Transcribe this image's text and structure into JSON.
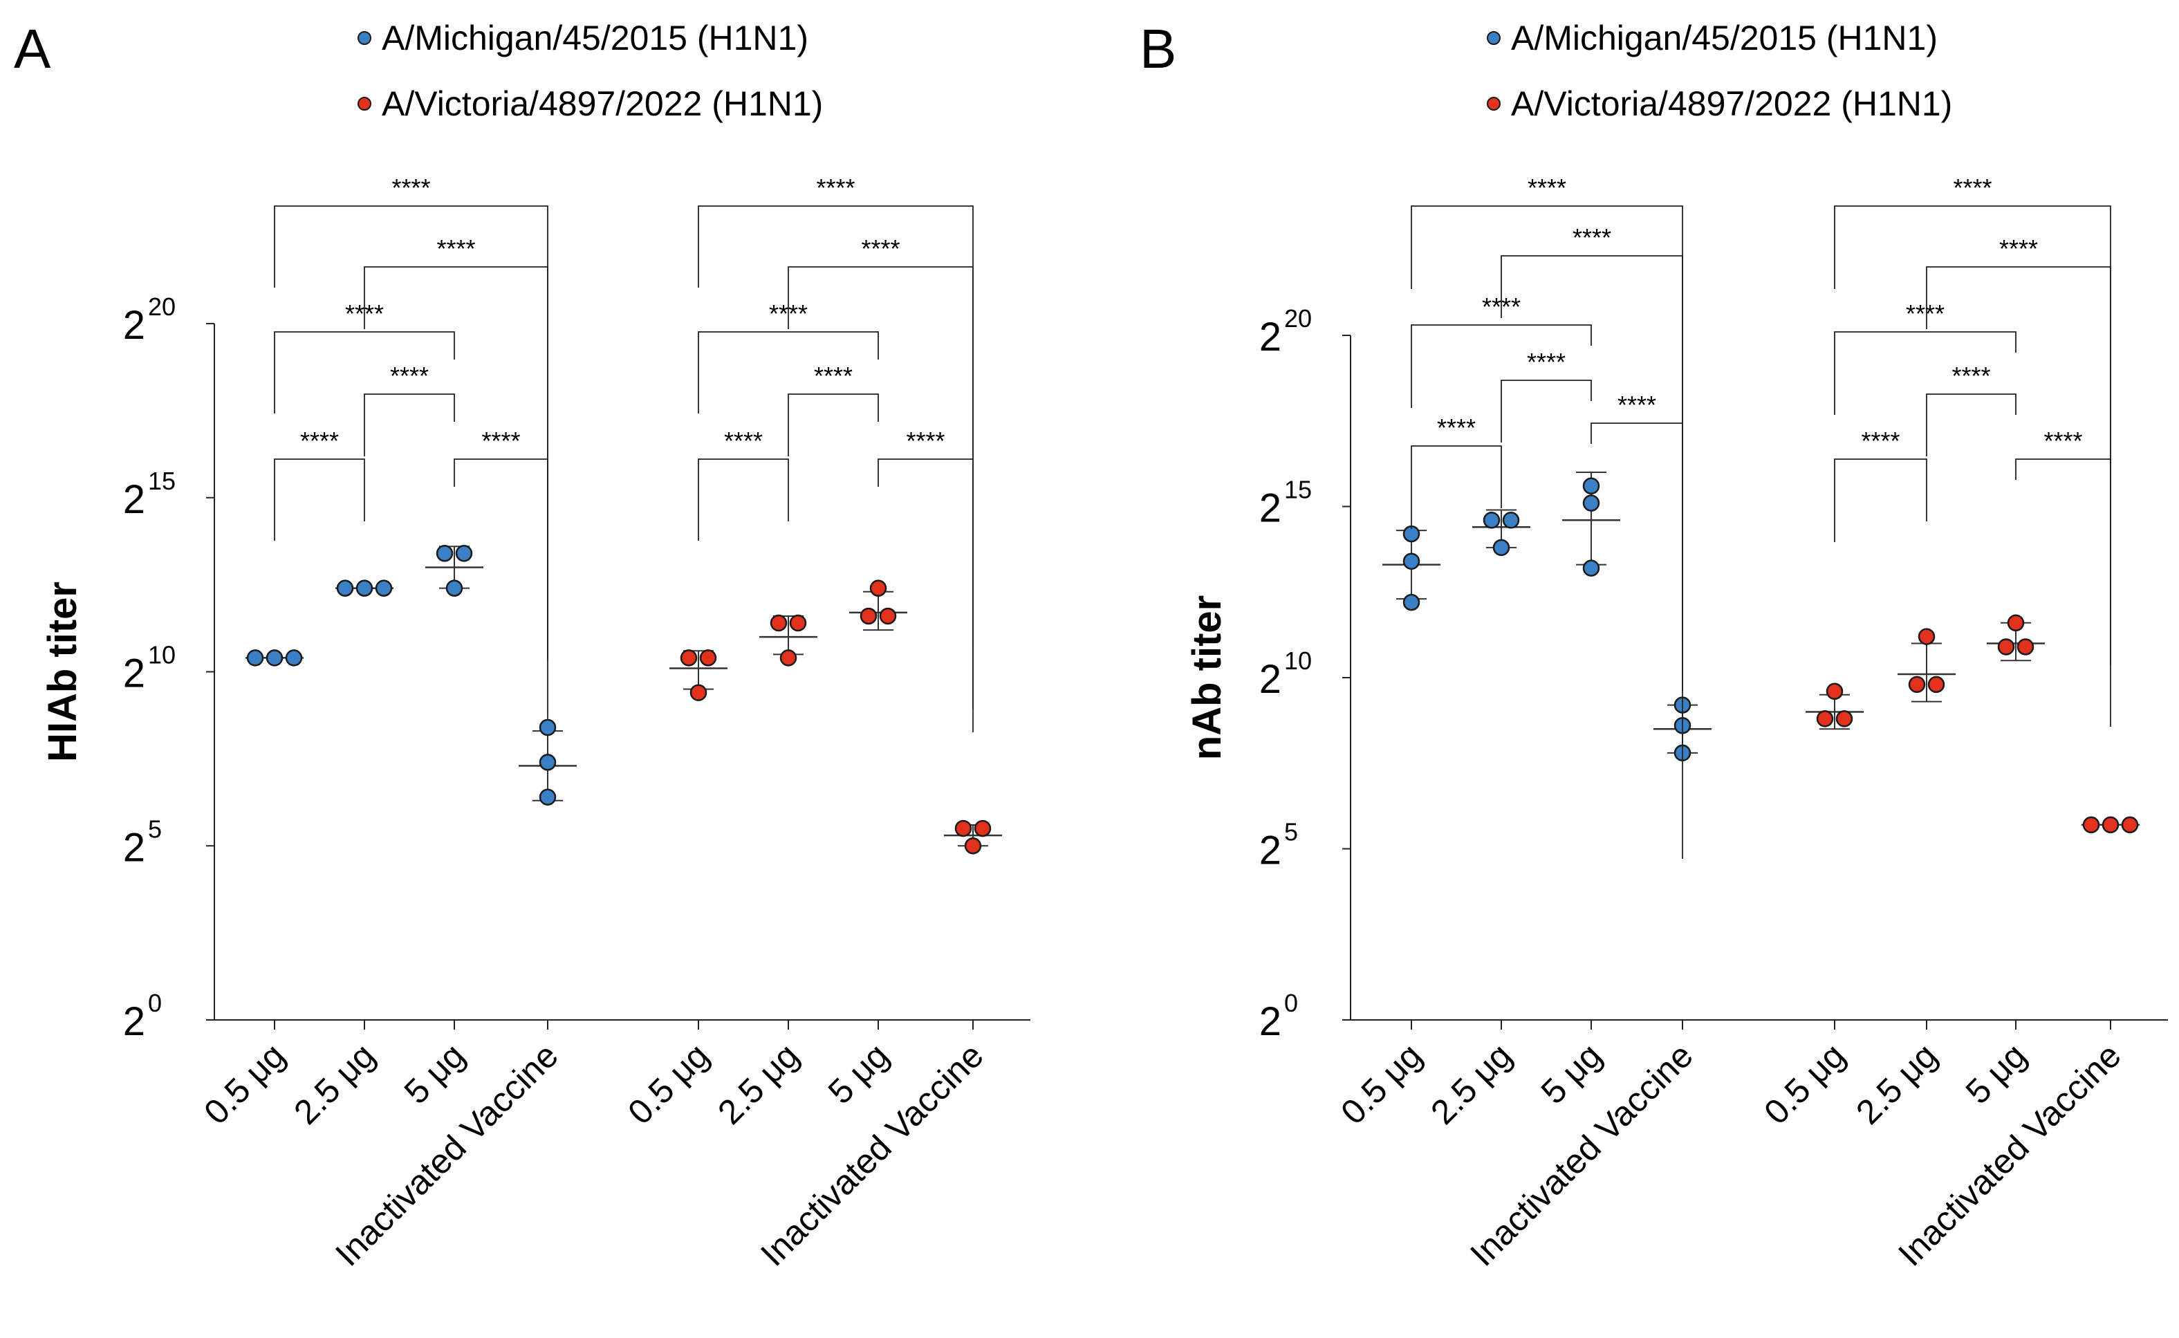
{
  "figure": {
    "colors": {
      "michigan": "#3b7fc4",
      "victoria": "#e2311d"
    }
  },
  "chart_data": [
    {
      "type": "scatter",
      "panel": "A",
      "ylabel": "HIAb titer",
      "yscale": "log2",
      "ylim": [
        0,
        20
      ],
      "yticks": [
        {
          "base": "2",
          "exp": "0"
        },
        {
          "base": "2",
          "exp": "5"
        },
        {
          "base": "2",
          "exp": "10"
        },
        {
          "base": "2",
          "exp": "15"
        },
        {
          "base": "2",
          "exp": "20"
        }
      ],
      "legend": [
        {
          "label": "A/Michigan/45/2015 (H1N1)",
          "color": "#3b7fc4"
        },
        {
          "label": "A/Victoria/4897/2022 (H1N1)",
          "color": "#e2311d"
        }
      ],
      "categories": [
        "0.5 μg",
        "2.5 μg",
        "5 μg",
        "Inactivated Vaccine",
        "0.5 μg",
        "2.5 μg",
        "5 μg",
        "Inactivated Vaccine"
      ],
      "series": [
        {
          "name": "A/Michigan/45/2015 (H1N1)",
          "color": "#3b7fc4",
          "groups": [
            {
              "points": [
                10.4,
                10.4,
                10.4
              ],
              "mean": 10.4,
              "sd_low": 10.4,
              "sd_high": 10.4
            },
            {
              "points": [
                12.4,
                12.4,
                12.4
              ],
              "mean": 12.4,
              "sd_low": 12.4,
              "sd_high": 12.4
            },
            {
              "points": [
                13.4,
                13.4,
                12.4
              ],
              "mean": 13.0,
              "sd_low": 12.4,
              "sd_high": 13.6
            },
            {
              "points": [
                8.4,
                7.4,
                6.4
              ],
              "mean": 7.3,
              "sd_low": 6.3,
              "sd_high": 8.3
            }
          ]
        },
        {
          "name": "A/Victoria/4897/2022 (H1N1)",
          "color": "#e2311d",
          "groups": [
            {
              "points": [
                10.4,
                10.4,
                9.4
              ],
              "mean": 10.1,
              "sd_low": 9.5,
              "sd_high": 10.6
            },
            {
              "points": [
                11.4,
                11.4,
                10.4
              ],
              "mean": 11.0,
              "sd_low": 10.5,
              "sd_high": 11.6
            },
            {
              "points": [
                12.4,
                11.6,
                11.6
              ],
              "mean": 11.7,
              "sd_low": 11.2,
              "sd_high": 12.3
            },
            {
              "points": [
                5.5,
                5.5,
                5.0
              ],
              "mean": 5.3,
              "sd_low": 5.0,
              "sd_high": 5.6
            }
          ]
        }
      ],
      "comparisons": [
        {
          "from": 0,
          "to": 3,
          "label": "****"
        },
        {
          "from": 1,
          "to": 3,
          "label": "****"
        },
        {
          "from": 0,
          "to": 2,
          "label": "****"
        },
        {
          "from": 1,
          "to": 2,
          "label": "****"
        },
        {
          "from": 0,
          "to": 1,
          "label": "****"
        },
        {
          "from": 2,
          "to": 3,
          "label": "****"
        },
        {
          "from": 4,
          "to": 7,
          "label": "****"
        },
        {
          "from": 5,
          "to": 7,
          "label": "****"
        },
        {
          "from": 4,
          "to": 6,
          "label": "****"
        },
        {
          "from": 5,
          "to": 6,
          "label": "****"
        },
        {
          "from": 4,
          "to": 5,
          "label": "****"
        },
        {
          "from": 6,
          "to": 7,
          "label": "****"
        }
      ]
    },
    {
      "type": "scatter",
      "panel": "B",
      "ylabel": "nAb titer",
      "yscale": "log2",
      "ylim": [
        0,
        20
      ],
      "yticks": [
        {
          "base": "2",
          "exp": "0"
        },
        {
          "base": "2",
          "exp": "5"
        },
        {
          "base": "2",
          "exp": "10"
        },
        {
          "base": "2",
          "exp": "15"
        },
        {
          "base": "2",
          "exp": "20"
        }
      ],
      "legend": [
        {
          "label": "A/Michigan/45/2015 (H1N1)",
          "color": "#3b7fc4"
        },
        {
          "label": "A/Victoria/4897/2022 (H1N1)",
          "color": "#e2311d"
        }
      ],
      "categories": [
        "0.5 μg",
        "2.5 μg",
        "5 μg",
        "Inactivated Vaccine",
        "0.5 μg",
        "2.5 μg",
        "5 μg",
        "Inactivated Vaccine"
      ],
      "series": [
        {
          "name": "A/Michigan/45/2015 (H1N1)",
          "color": "#3b7fc4",
          "groups": [
            {
              "points": [
                14.2,
                13.4,
                12.2
              ],
              "mean": 13.3,
              "sd_low": 12.3,
              "sd_high": 14.3
            },
            {
              "points": [
                14.6,
                14.6,
                13.8
              ],
              "mean": 14.4,
              "sd_low": 13.8,
              "sd_high": 14.9
            },
            {
              "points": [
                15.6,
                15.1,
                13.2
              ],
              "mean": 14.6,
              "sd_low": 13.3,
              "sd_high": 16.0
            },
            {
              "points": [
                9.2,
                8.6,
                7.8
              ],
              "mean": 8.5,
              "sd_low": 7.8,
              "sd_high": 9.2
            }
          ]
        },
        {
          "name": "A/Victoria/4897/2022 (H1N1)",
          "color": "#e2311d",
          "groups": [
            {
              "points": [
                9.6,
                8.8,
                8.8
              ],
              "mean": 9.0,
              "sd_low": 8.5,
              "sd_high": 9.5
            },
            {
              "points": [
                11.2,
                9.8,
                9.8
              ],
              "mean": 10.1,
              "sd_low": 9.3,
              "sd_high": 11.0
            },
            {
              "points": [
                11.6,
                10.9,
                10.9
              ],
              "mean": 11.0,
              "sd_low": 10.5,
              "sd_high": 11.6
            },
            {
              "points": [
                5.7,
                5.7,
                5.7
              ],
              "mean": 5.7,
              "sd_low": 5.7,
              "sd_high": 5.7
            }
          ]
        }
      ],
      "comparisons": [
        {
          "from": 0,
          "to": 3,
          "label": "****"
        },
        {
          "from": 1,
          "to": 3,
          "label": "****"
        },
        {
          "from": 0,
          "to": 2,
          "label": "****"
        },
        {
          "from": 1,
          "to": 2,
          "label": "****"
        },
        {
          "from": 0,
          "to": 1,
          "label": "****"
        },
        {
          "from": 2,
          "to": 3,
          "label": "****"
        },
        {
          "from": 4,
          "to": 7,
          "label": "****"
        },
        {
          "from": 5,
          "to": 7,
          "label": "****"
        },
        {
          "from": 4,
          "to": 6,
          "label": "****"
        },
        {
          "from": 5,
          "to": 6,
          "label": "****"
        },
        {
          "from": 4,
          "to": 5,
          "label": "****"
        },
        {
          "from": 6,
          "to": 7,
          "label": "****"
        }
      ]
    }
  ]
}
